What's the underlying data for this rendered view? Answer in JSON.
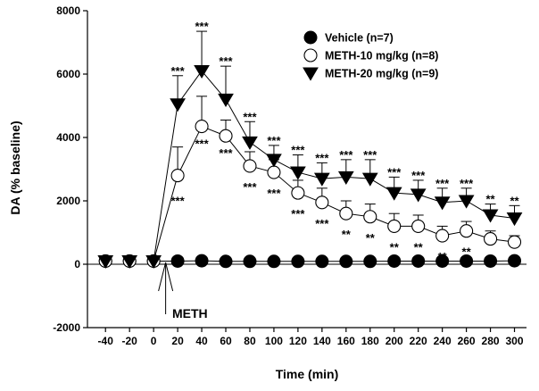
{
  "chart_data": {
    "type": "line",
    "title": "",
    "xlabel": "Time (min)",
    "ylabel": "DA (% baseline)",
    "xlim": [
      -55,
      310
    ],
    "ylim": [
      -2000,
      8000
    ],
    "x_ticks": [
      -40,
      -20,
      0,
      20,
      40,
      60,
      80,
      100,
      120,
      140,
      160,
      180,
      200,
      220,
      240,
      260,
      280,
      300
    ],
    "y_ticks": [
      -2000,
      0,
      2000,
      4000,
      6000,
      8000
    ],
    "grid": false,
    "legend": "top-right",
    "annotation": {
      "text": "METH",
      "x": 10
    },
    "series": [
      {
        "name": "Vehicle (n=7)",
        "marker": "filled-circle",
        "x": [
          -40,
          -20,
          0,
          20,
          40,
          60,
          80,
          100,
          120,
          140,
          160,
          180,
          200,
          220,
          240,
          260,
          280,
          300
        ],
        "values": [
          100,
          100,
          100,
          100,
          110,
          90,
          90,
          90,
          90,
          90,
          90,
          90,
          100,
          100,
          100,
          100,
          100,
          110
        ],
        "errors": [
          0,
          0,
          0,
          0,
          0,
          0,
          0,
          0,
          0,
          0,
          0,
          0,
          0,
          0,
          0,
          0,
          0,
          0
        ]
      },
      {
        "name": "METH-10 mg/kg (n=8)",
        "marker": "open-circle",
        "x": [
          -40,
          -20,
          0,
          20,
          40,
          60,
          80,
          100,
          120,
          140,
          160,
          180,
          200,
          220,
          240,
          260,
          280,
          300
        ],
        "values": [
          100,
          100,
          100,
          2800,
          4350,
          4050,
          3100,
          2900,
          2250,
          1950,
          1600,
          1500,
          1200,
          1200,
          900,
          1050,
          800,
          700
        ],
        "errors": [
          0,
          0,
          0,
          900,
          950,
          500,
          450,
          400,
          400,
          450,
          400,
          400,
          400,
          350,
          300,
          300,
          250,
          200
        ],
        "significance": [
          "",
          "",
          "",
          "***",
          "***",
          "***",
          "***",
          "***",
          "***",
          "***",
          "**",
          "**",
          "**",
          "**",
          "**",
          "**",
          "**",
          ""
        ]
      },
      {
        "name": "METH-20 mg/kg (n=9)",
        "marker": "filled-triangle-down",
        "x": [
          -40,
          -20,
          0,
          20,
          40,
          60,
          80,
          100,
          120,
          140,
          160,
          180,
          200,
          220,
          240,
          260,
          280,
          300
        ],
        "values": [
          100,
          100,
          100,
          5050,
          6100,
          5200,
          3850,
          3300,
          2900,
          2700,
          2750,
          2700,
          2250,
          2200,
          1950,
          2000,
          1550,
          1450
        ],
        "errors": [
          0,
          0,
          0,
          900,
          1250,
          1050,
          650,
          450,
          550,
          500,
          550,
          600,
          500,
          450,
          450,
          400,
          350,
          400
        ],
        "significance": [
          "",
          "",
          "",
          "***",
          "***",
          "***",
          "***",
          "***",
          "***",
          "***",
          "***",
          "***",
          "***",
          "***",
          "***",
          "***",
          "**",
          "**"
        ]
      }
    ]
  }
}
